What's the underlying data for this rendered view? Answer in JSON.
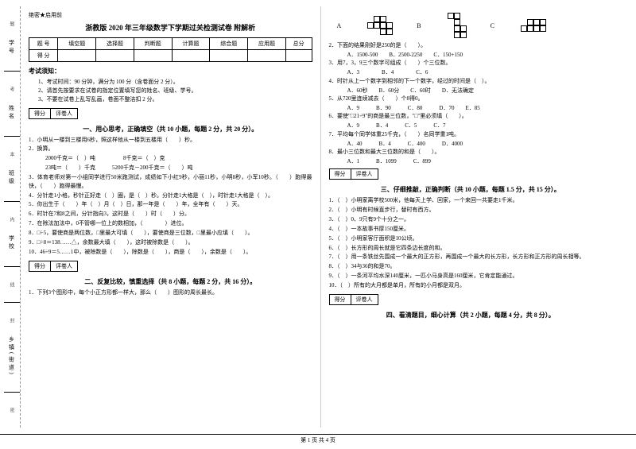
{
  "margin": {
    "items": [
      "学号",
      "姓名",
      "班级",
      "学校",
      "乡镇(街道)"
    ],
    "dots": [
      "题",
      "考",
      "本",
      "内",
      "线",
      "封",
      "密"
    ]
  },
  "confid": "绝密★启用前",
  "title": "浙教版 2020 年三年级数学下学期过关检测试卷 附解析",
  "score": {
    "headers": [
      "题 号",
      "填空题",
      "选择题",
      "判断题",
      "计算题",
      "综合题",
      "应用题",
      "总分"
    ],
    "row2": "得 分"
  },
  "notice": {
    "h": "考试须知：",
    "items": [
      "1、考试时间：90 分钟，满分为 100 分（含卷面分 2 分）。",
      "2、请首先按要求在试卷的指定位置填写您的姓名、班级、学号。",
      "3、不要在试卷上乱写乱画，卷面不整洁扣 2 分。"
    ]
  },
  "grader": {
    "a": "得分",
    "b": "评卷人"
  },
  "sec1": {
    "h": "一、用心思考，正确填空（共 10 小题，每题 2 分，共 20 分）。",
    "q": [
      "1．小明从一楼到三楼用6秒，照这样他从一楼到五楼用（　　）秒。",
      "2．换算。",
      "　2000千克＝（　）吨　　　　　8千克＝（　）克",
      "　23吨＝（　　）千克　　　5200千克－200千克＝（　　）吨",
      "3．体育老师对第一小组同学进行50米跑测试，成绩如下小红9秒，小丽11秒，小明8秒，小军10秒。（　　）跑得最快，（　　）跑得最慢。",
      "4．分针走1小格，秒针正好走（　）圈，是（　）秒。分针走1大格是（　），时针走1大格是（　）。",
      "5．你出生于（　　）年（　）月（　）日，那一年是（　　）年，全年有（　　）天。",
      "6．时针在7和8之间，分针指向3，这时是（　　）时（　　）分。",
      "7．在除法加法中，0不管哪一位上的数相加，（　　　　）进位。",
      "8．□÷5，要使商是两位数，□里最大可填（　　），要使商是三位数，□里最小应填（　　）。",
      "9．□÷8＝138……△，余数最大填（　　），这时被除数是（　　）。",
      "10．46÷9＝5……1中，被除数是（　　），除数是（　　），商是（　　），余数是（　　）。"
    ]
  },
  "sec2": {
    "h": "二、反复比较，慎重选择（共 8 小题，每题 2 分，共 16 分）。",
    "q1": "1．下列3个图形中，每个小正方形都一样大，那么（　　）图形的周长最长。",
    "labels": [
      "A",
      "B",
      "C"
    ],
    "q": [
      "2．下面的结果刚好是250的是（　　）。",
      "　A．1500-500　　B．2500-2250　　C．150+150",
      "3．用7，3，9三个数字可组成（　　）个三位数。",
      "　A．3　　　　B．4　　　　C．6",
      "4．时针从上一个数字到相邻的下一个数字，经过的时间是（　）。",
      "　A．60秒　　B．60分　　C．60时　　D．无法确定",
      "5．从720里连续减去（　　）个8得0。",
      "　A．9　　　B．90　　　C．80　　　D．70　　E．85",
      "6．要使\"□21÷9\"的商是最三位数，\"□\"里必须填（　　）。",
      "　A．9　　　B．4　　　C．5　　　C．7",
      "7．平均每个同学体重25千克，（　　）名同学重1吨。",
      "　A．40　　　B．4　　　C．400　　　D．4000",
      "8．最小三位数和最大三位数的和是（　　）。",
      "　A．1　　　B．1099　　　C．899"
    ]
  },
  "sec3": {
    "h": "三、仔细推敲，正确判断（共 10 小题，每题 1.5 分，共 15 分）。",
    "q": [
      "1．（　）小明家离学校500米，他每天上学、回家，一个来回一共要走1千米。",
      "2．（　）小明有时候直步行，替时有西方。",
      "3．（　）0、9只有9个十分之一。",
      "4．（　）一本故事书厚150厘米。",
      "5．（　）小明家客厅面积是10公顷。",
      "6．（　）长方形的周长就是它四条边长度的和。",
      "7．（　）用一条铁丝先围成一个最大的正方形，再围成一个最大的长方形，长方形和正方形的周长相等。",
      "8．（　）34与36的和是70。",
      "9．（　）一条河平均水深140厘米，一匹小马身高是160厘米，它肯定能通过。",
      "10．（　）所有的大月都是单月，所有的小月都是双月。"
    ]
  },
  "sec4": {
    "h": "四、看清题目，细心计算（共 2 小题，每题 4 分，共 8 分）。"
  },
  "footer": "第 1 页 共 4 页"
}
